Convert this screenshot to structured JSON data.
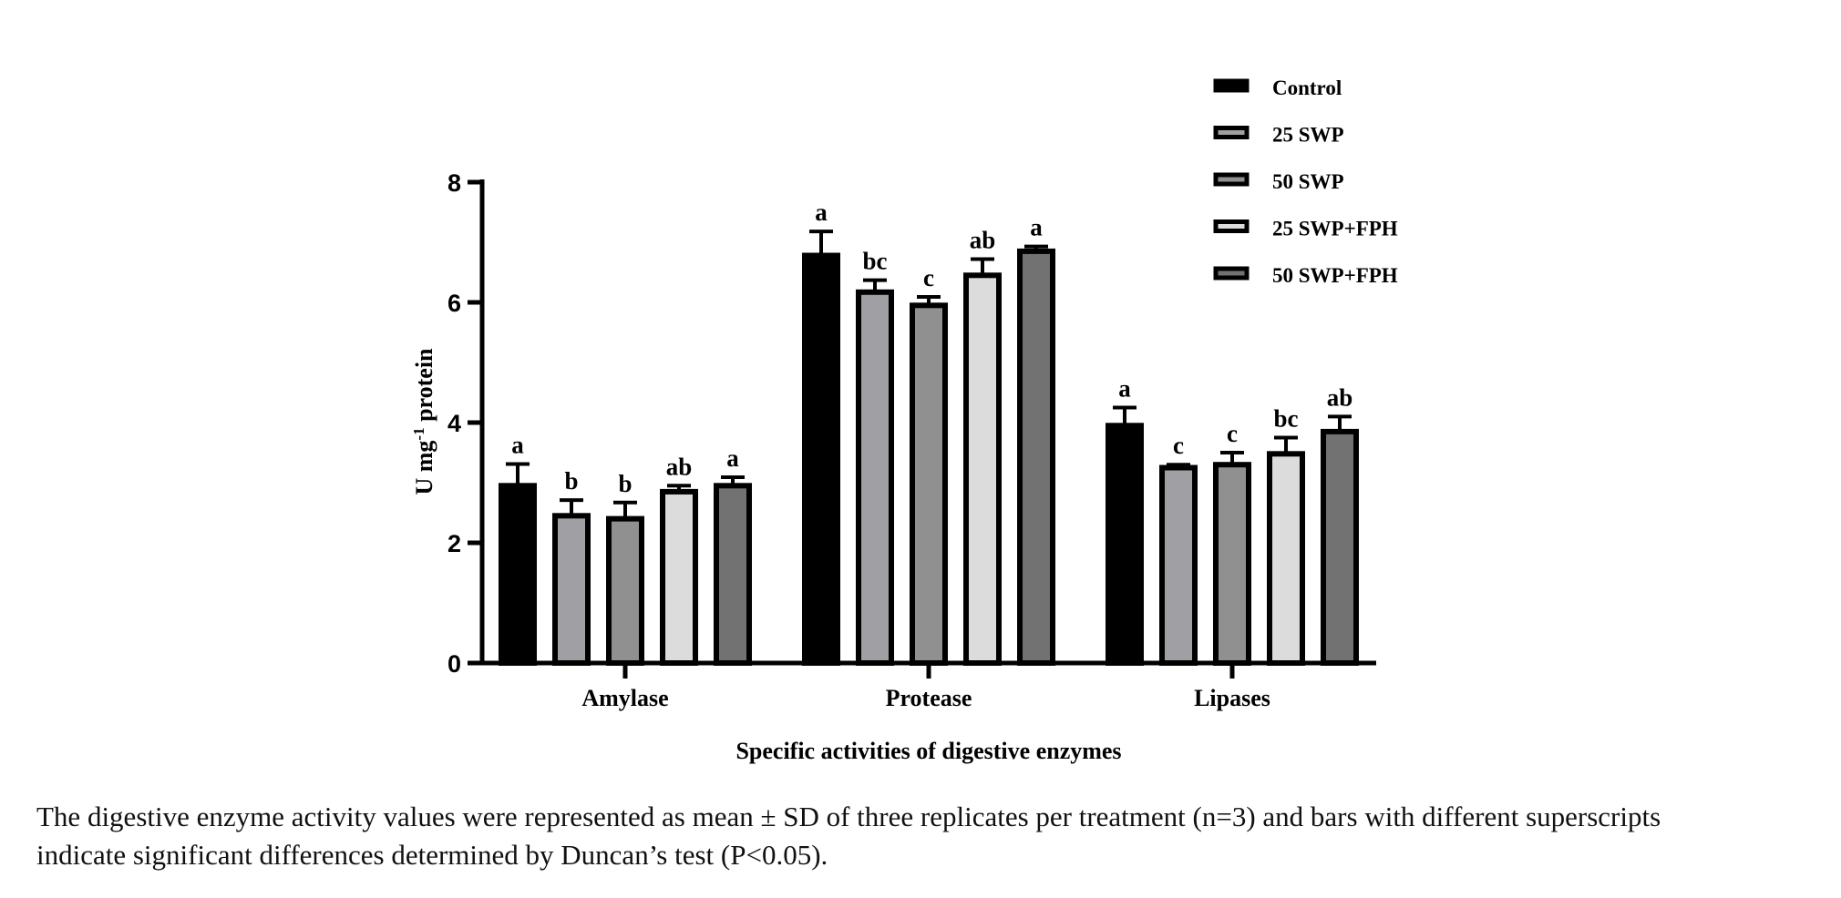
{
  "chart_data": {
    "type": "bar",
    "title": "",
    "xlabel": "Specific activities of digestive enzymes",
    "ylabel": "U mg",
    "ylabel_superscript": "-1",
    "ylabel_suffix": " protein",
    "ylim": [
      0,
      8
    ],
    "yticks": [
      "0",
      "2",
      "4",
      "6",
      "8"
    ],
    "categories": [
      "Amylase",
      "Protease",
      "Lipases"
    ],
    "legend_position": "top-right",
    "series": [
      {
        "name": "Control",
        "color": "#000000",
        "values": [
          2.95,
          6.78,
          3.95
        ],
        "errors": [
          0.36,
          0.4,
          0.3
        ],
        "letters": [
          "a",
          "a",
          "a"
        ]
      },
      {
        "name": "25 SWP",
        "color": "#a0a0a4",
        "values": [
          2.45,
          6.17,
          3.25
        ],
        "errors": [
          0.26,
          0.2,
          0.05
        ],
        "letters": [
          "b",
          "bc",
          "c"
        ]
      },
      {
        "name": "50 SWP",
        "color": "#909090",
        "values": [
          2.4,
          5.95,
          3.3
        ],
        "errors": [
          0.27,
          0.14,
          0.2
        ],
        "letters": [
          "b",
          "c",
          "c"
        ]
      },
      {
        "name": "25 SWP+FPH",
        "color": "#dcdcdc",
        "values": [
          2.85,
          6.45,
          3.48
        ],
        "errors": [
          0.1,
          0.27,
          0.27
        ],
        "letters": [
          "ab",
          "ab",
          "bc"
        ]
      },
      {
        "name": "50 SWP+FPH",
        "color": "#727272",
        "values": [
          2.95,
          6.85,
          3.85
        ],
        "errors": [
          0.14,
          0.08,
          0.25
        ],
        "letters": [
          "a",
          "a",
          "ab"
        ]
      }
    ]
  },
  "caption": {
    "line1": "The digestive enzyme activity values were represented as mean ± SD of three replicates per treatment (n=3) and bars with different superscripts",
    "line2": "indicate significant differences determined by Duncan’s test (P<0.05)."
  }
}
